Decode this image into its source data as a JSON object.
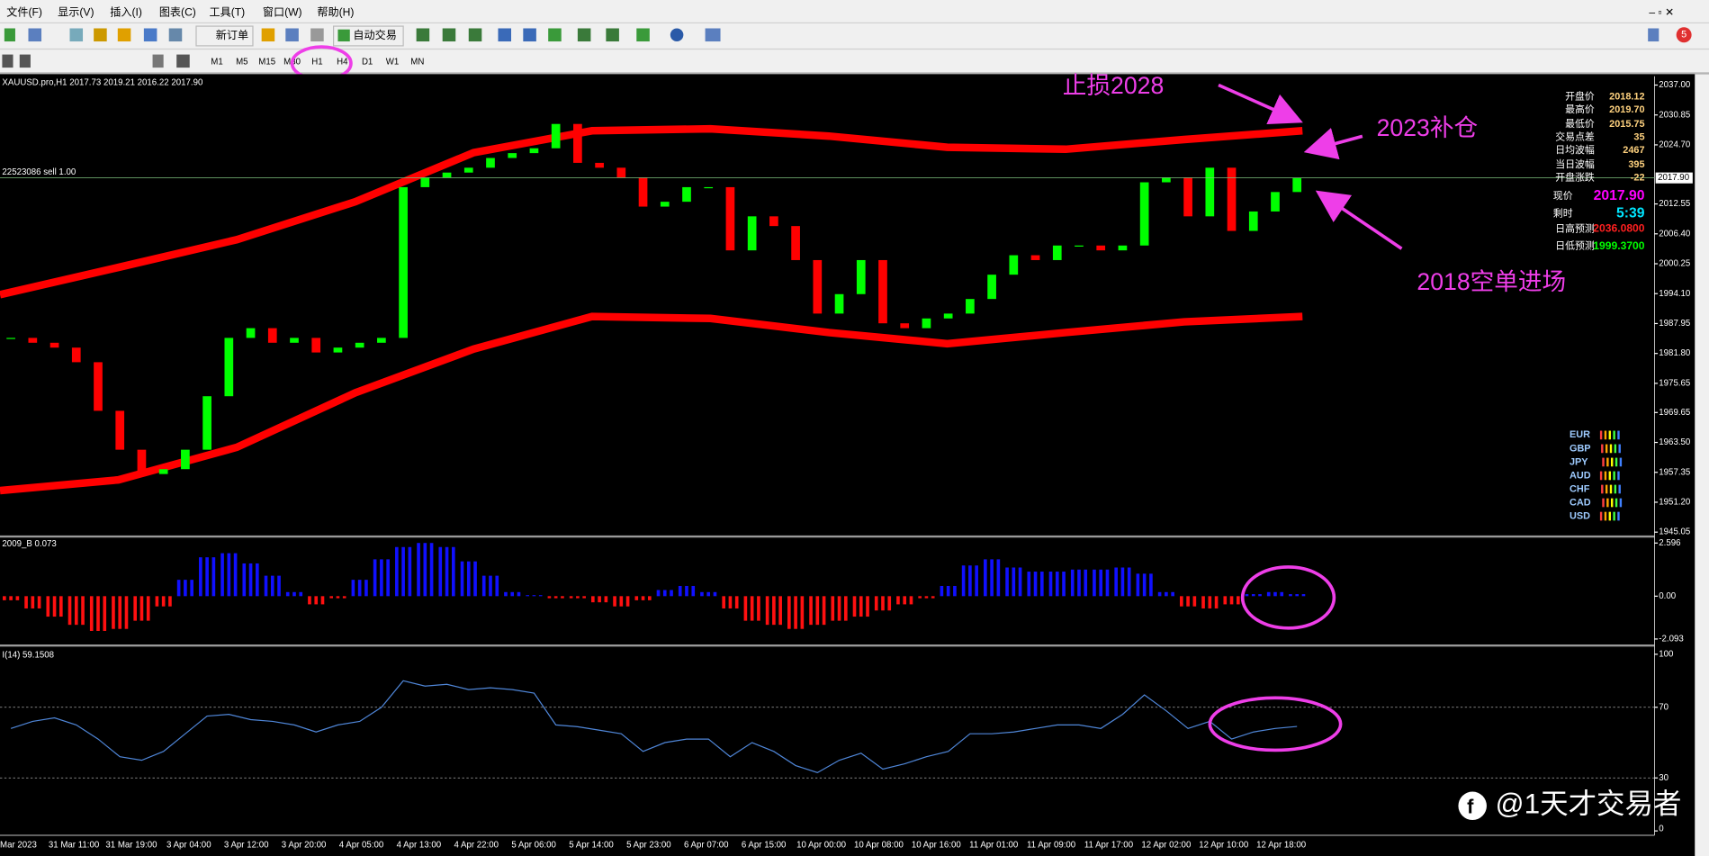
{
  "menu": [
    "文件(F)",
    "显示(V)",
    "插入(I)",
    "图表(C)",
    "工具(T)",
    "窗口(W)",
    "帮助(H)"
  ],
  "toolbar": {
    "new_order": "新订单",
    "auto_trading": "自动交易",
    "notifications": "5"
  },
  "timeframes": [
    "M1",
    "M5",
    "M15",
    "M30",
    "H1",
    "H4",
    "D1",
    "W1",
    "MN"
  ],
  "chart": {
    "header": "XAUUSD.pro,H1  2017.73 2019.21 2016.22 2017.90",
    "order_label": "22523086 sell 1.00",
    "current_price": {
      "value": 2017.9,
      "label": "2017.90"
    },
    "ylim": [
      1945.05,
      2037
    ],
    "yticks": [
      {
        "value": 2037,
        "label": "2037.00"
      },
      2030.85,
      {
        "value": 2024.7,
        "label": "2024.70"
      },
      2012.55,
      {
        "value": 2006.4,
        "label": "2006.40"
      },
      2000.25,
      {
        "value": 1994.1,
        "label": "1994.10"
      },
      1987.95,
      {
        "value": 1981.8,
        "label": "1981.80"
      },
      1975.65,
      1969.65,
      {
        "value": 1963.5,
        "label": "1963.50"
      },
      1957.35,
      {
        "value": 1951.2,
        "label": "1951.20"
      },
      1945.05
    ],
    "closes": [
      1985,
      1984,
      1983,
      1980,
      1970,
      1962,
      1957,
      1958,
      1962,
      1973,
      1985,
      1987,
      1984,
      1985,
      1982,
      1983,
      1984,
      1985,
      2016,
      2018,
      2019,
      2020,
      2022,
      2023,
      2024,
      2029,
      2021,
      2020,
      2018,
      2012,
      2013,
      2016,
      2016,
      2003,
      2010,
      2008,
      2001,
      1990,
      1994,
      2001,
      1988,
      1987,
      1989,
      1990,
      1993,
      1998,
      2002,
      2001,
      2004,
      2004,
      2003,
      2004,
      2017,
      2018,
      2010,
      2020,
      2007,
      2011,
      2015,
      2017.9
    ],
    "up_color": "#00ff00",
    "down_color": "#ff0000",
    "upper_band": [
      1993.9,
      1999.5,
      2005.2,
      2013,
      2023.1,
      2027.6,
      2028,
      2026.5,
      2024.2,
      2023.8,
      2025.8,
      2027.6
    ],
    "lower_band": [
      1953.6,
      1955.8,
      1962.5,
      1973.7,
      1982.7,
      1989.4,
      1989,
      1986.1,
      1983.8,
      1986.1,
      1988.3,
      1989.4
    ],
    "band_color": "#ff0000",
    "x_labels": [
      "Mar 2023",
      "31 Mar 11:00",
      "31 Mar 19:00",
      "3 Apr 04:00",
      "3 Apr 12:00",
      "3 Apr 20:00",
      "4 Apr 05:00",
      "4 Apr 13:00",
      "4 Apr 22:00",
      "5 Apr 06:00",
      "5 Apr 14:00",
      "5 Apr 23:00",
      "6 Apr 07:00",
      "6 Apr 15:00",
      "10 Apr 00:00",
      "10 Apr 08:00",
      "10 Apr 16:00",
      "11 Apr 01:00",
      "11 Apr 09:00",
      "11 Apr 17:00",
      "12 Apr 02:00",
      "12 Apr 10:00",
      "12 Apr 18:00"
    ],
    "info_panel": [
      {
        "label": "开盘价",
        "value": "2018.12",
        "color": "#ffd27f"
      },
      {
        "label": "最高价",
        "value": "2019.70",
        "color": "#ffd27f"
      },
      {
        "label": "最低价",
        "value": "2015.75",
        "color": "#ffd27f"
      },
      {
        "label": "交易点差",
        "value": "35",
        "color": "#ffd27f"
      },
      {
        "label": "日均波幅",
        "value": "2467",
        "color": "#ffd27f"
      },
      {
        "label": "当日波幅",
        "value": "395",
        "color": "#ffd27f"
      },
      {
        "label": "开盘涨跌",
        "value": "-22",
        "color": "#ffd27f"
      },
      {
        "label": "现价",
        "value": "2017.90",
        "color": "#ff00ff"
      },
      {
        "label": "剩时",
        "value": "5:39",
        "color": "#00e5ff"
      },
      {
        "label": "日高预测",
        "value": "2036.0800",
        "color": "#ff2020"
      },
      {
        "label": "日低预测",
        "value": "1999.3700",
        "color": "#00ff00"
      }
    ],
    "currencies": [
      "EUR",
      "GBP",
      "JPY",
      "AUD",
      "CHF",
      "CAD",
      "USD"
    ],
    "annotations": [
      "止损2028",
      "2023补仓",
      "2018空单进场"
    ]
  },
  "oscillator": {
    "label": "2009_B 0.073",
    "ylim": [
      -2.093,
      2.596
    ],
    "yticks": [
      2.596,
      {
        "value": 0,
        "label": "0.00"
      },
      -2.093
    ],
    "values": [
      -0.2,
      -0.6,
      -1.0,
      -1.4,
      -1.7,
      -1.6,
      -1.2,
      -0.5,
      0.8,
      1.9,
      2.1,
      1.6,
      1.0,
      0.2,
      -0.4,
      -0.1,
      0.8,
      1.8,
      2.4,
      2.6,
      2.4,
      1.7,
      1.0,
      0.2,
      0.05,
      -0.1,
      -0.1,
      -0.3,
      -0.5,
      -0.2,
      0.3,
      0.5,
      0.2,
      -0.6,
      -1.2,
      -1.4,
      -1.6,
      -1.4,
      -1.2,
      -1.0,
      -0.7,
      -0.4,
      -0.1,
      0.5,
      1.5,
      1.8,
      1.4,
      1.2,
      1.2,
      1.3,
      1.3,
      1.4,
      1.1,
      0.2,
      -0.5,
      -0.6,
      -0.4,
      0.1,
      0.2,
      0.1
    ],
    "pos_color": "#1010ff",
    "neg_color": "#ff1010"
  },
  "rsi": {
    "label": "I(14) 59.1508",
    "ylim": [
      0,
      100
    ],
    "yticks": [
      100,
      70,
      30,
      0
    ],
    "levels": [
      70,
      30
    ],
    "values": [
      58,
      62,
      64,
      60,
      52,
      42,
      40,
      45,
      55,
      65,
      66,
      63,
      62,
      60,
      56,
      60,
      62,
      70,
      85,
      82,
      83,
      80,
      81,
      80,
      78,
      60,
      59,
      57,
      55,
      45,
      50,
      52,
      52,
      42,
      50,
      45,
      37,
      33,
      40,
      44,
      35,
      38,
      42,
      45,
      55,
      55,
      56,
      58,
      60,
      60,
      58,
      66,
      77,
      68,
      58,
      62,
      52,
      56,
      58,
      59.15
    ],
    "color": "#4f86d8"
  },
  "watermark": "@1天才交易者"
}
